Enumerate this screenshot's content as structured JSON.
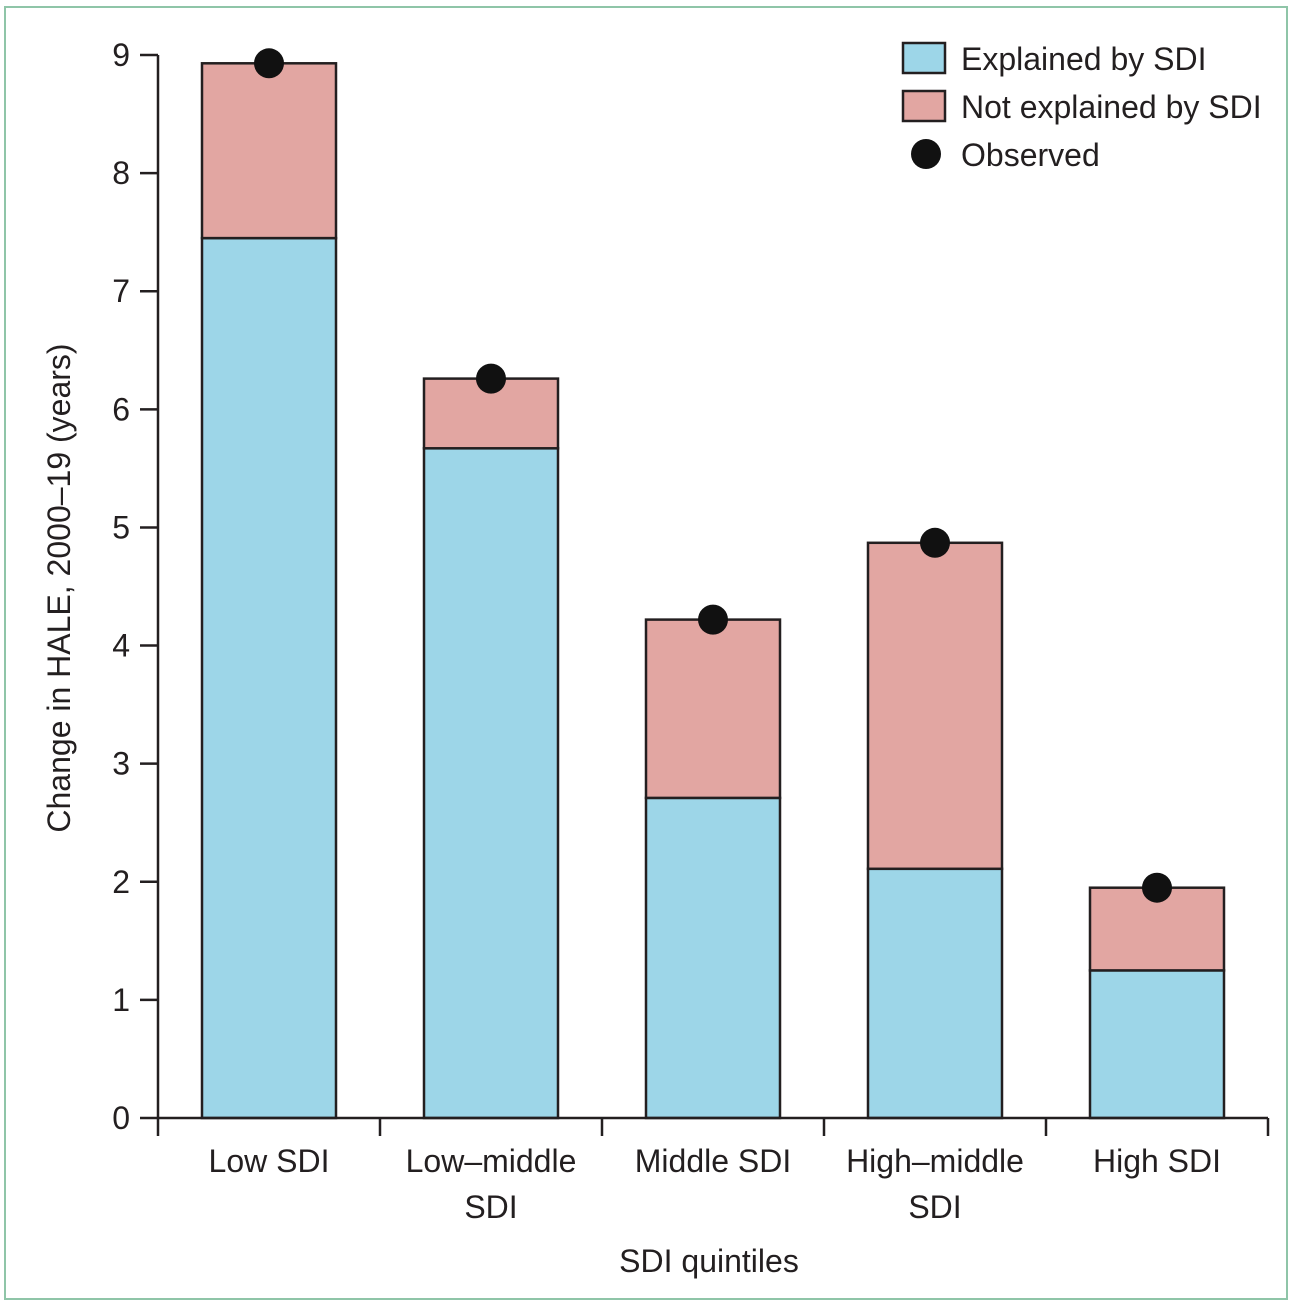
{
  "chart_data": {
    "type": "bar",
    "stacked": true,
    "xlabel": "SDI quintiles",
    "ylabel": "Change in HALE, 2000–19 (years)",
    "ylim": [
      0,
      9
    ],
    "yticks": [
      0,
      1,
      2,
      3,
      4,
      5,
      6,
      7,
      8,
      9
    ],
    "categories": [
      [
        "Low SDI"
      ],
      [
        "Low–middle",
        "SDI"
      ],
      [
        "Middle SDI"
      ],
      [
        "High–middle",
        "SDI"
      ],
      [
        "High SDI"
      ]
    ],
    "series": [
      {
        "name": "Explained by SDI",
        "color": "#9dd6e8",
        "values": [
          7.45,
          5.67,
          2.71,
          2.11,
          1.25
        ]
      },
      {
        "name": "Not explained by SDI",
        "color": "#e2a6a2",
        "values": [
          1.48,
          0.59,
          1.51,
          2.76,
          0.7
        ]
      }
    ],
    "observed": {
      "name": "Observed",
      "color": "#111111",
      "values": [
        8.93,
        6.26,
        4.22,
        4.87,
        1.95
      ]
    },
    "legend": {
      "position": "top-right",
      "items": [
        {
          "label": "Explained by SDI",
          "marker": "box",
          "color": "#9dd6e8"
        },
        {
          "label": "Not explained by SDI",
          "marker": "box",
          "color": "#e2a6a2"
        },
        {
          "label": "Observed",
          "marker": "dot",
          "color": "#111111"
        }
      ]
    }
  }
}
